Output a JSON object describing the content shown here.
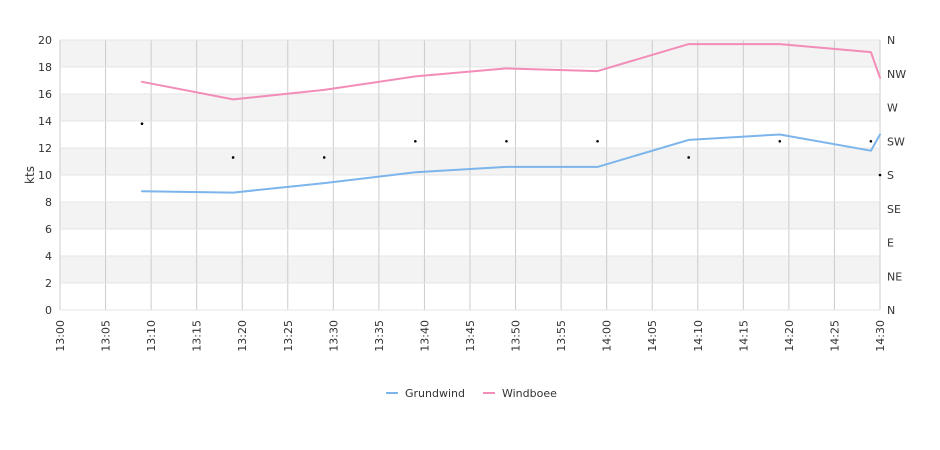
{
  "chart_data": {
    "type": "line",
    "title": "",
    "xlabel": "",
    "ylabel": "kts",
    "ylim": [
      0,
      20
    ],
    "x_ticks": [
      "13:00",
      "13:05",
      "13:10",
      "13:15",
      "13:20",
      "13:25",
      "13:30",
      "13:35",
      "13:40",
      "13:45",
      "13:50",
      "13:55",
      "14:00",
      "14:05",
      "14:10",
      "14:15",
      "14:20",
      "14:25",
      "14:30"
    ],
    "y_ticks": [
      "0",
      "2",
      "4",
      "6",
      "8",
      "10",
      "12",
      "14",
      "16",
      "18",
      "20"
    ],
    "direction_ticks": [
      "N",
      "NE",
      "E",
      "SE",
      "S",
      "SW",
      "W",
      "NW",
      "N"
    ],
    "grid": true,
    "legend_position": "bottom",
    "series": [
      {
        "name": "Grundwind",
        "color": "#7cb5ec",
        "points": [
          {
            "x": "13:09",
            "y": 8.8
          },
          {
            "x": "13:19",
            "y": 8.7
          },
          {
            "x": "13:29",
            "y": 9.4
          },
          {
            "x": "13:39",
            "y": 10.2
          },
          {
            "x": "13:49",
            "y": 10.6
          },
          {
            "x": "13:59",
            "y": 10.6
          },
          {
            "x": "14:09",
            "y": 12.6
          },
          {
            "x": "14:19",
            "y": 13.0
          },
          {
            "x": "14:29",
            "y": 11.8
          },
          {
            "x": "14:30",
            "y": 13.0
          }
        ]
      },
      {
        "name": "Windboee",
        "color": "#f28cb8",
        "points": [
          {
            "x": "13:09",
            "y": 16.9
          },
          {
            "x": "13:19",
            "y": 15.6
          },
          {
            "x": "13:29",
            "y": 16.3
          },
          {
            "x": "13:39",
            "y": 17.3
          },
          {
            "x": "13:49",
            "y": 17.9
          },
          {
            "x": "13:59",
            "y": 17.7
          },
          {
            "x": "14:09",
            "y": 19.7
          },
          {
            "x": "14:19",
            "y": 19.7
          },
          {
            "x": "14:29",
            "y": 19.1
          },
          {
            "x": "14:30",
            "y": 17.2
          }
        ]
      }
    ],
    "direction_markers": [
      {
        "x": "13:09",
        "y": 13.8
      },
      {
        "x": "13:19",
        "y": 11.3
      },
      {
        "x": "13:29",
        "y": 11.3
      },
      {
        "x": "13:39",
        "y": 12.5
      },
      {
        "x": "13:49",
        "y": 12.5
      },
      {
        "x": "13:59",
        "y": 12.5
      },
      {
        "x": "14:09",
        "y": 11.3
      },
      {
        "x": "14:19",
        "y": 12.5
      },
      {
        "x": "14:29",
        "y": 12.5
      },
      {
        "x": "14:30",
        "y": 10.0
      }
    ]
  }
}
